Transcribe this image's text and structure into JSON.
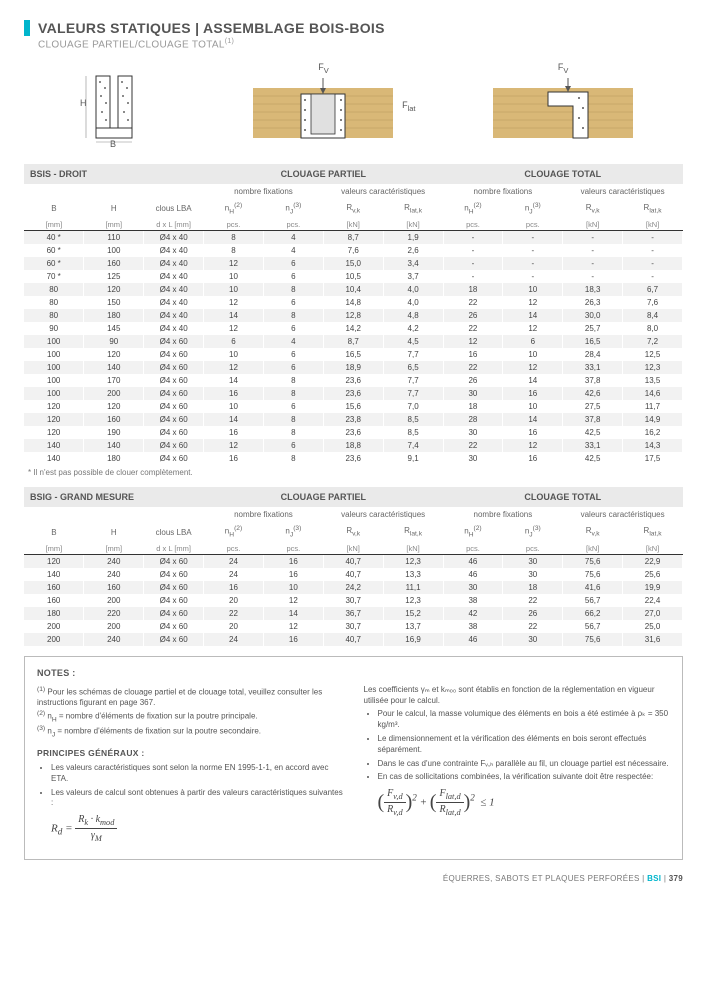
{
  "title": "VALEURS STATIQUES | ASSEMBLAGE BOIS-BOIS",
  "subtitle_prefix": "CLOUAGE PARTIEL/CLOUAGE TOTAL",
  "subtitle_sup": "(1)",
  "diagram_labels": {
    "H": "H",
    "B": "B",
    "Fv": "F",
    "Fv_sub": "V",
    "Flat": "F",
    "Flat_sub": "lat"
  },
  "accent_color": "#00b5cc",
  "group_headers": {
    "partiel": "CLOUAGE PARTIEL",
    "total": "CLOUAGE TOTAL",
    "nombre": "nombre fixations",
    "valeurs": "valeurs caractéristiques"
  },
  "col_labels": {
    "B": "B",
    "H": "H",
    "clous": "clous LBA",
    "nH": "n",
    "nH_sub": "H",
    "nH_sup": "(2)",
    "nJ": "n",
    "nJ_sub": "J",
    "nJ_sup": "(3)",
    "Rvk": "R",
    "Rvk_sub": "v,k",
    "Rlatk": "R",
    "Rlatk_sub": "lat,k"
  },
  "units": {
    "mm": "[mm]",
    "dxl": "d x L [mm]",
    "pcs": "pcs.",
    "kN": "[kN]"
  },
  "table1": {
    "title": "BSIS - DROIT",
    "rows": [
      {
        "B": "40 *",
        "H": "110",
        "cl": "Ø4 x 40",
        "p": [
          "8",
          "4",
          "8,7",
          "1,9"
        ],
        "t": [
          "-",
          "-",
          "-",
          "-"
        ]
      },
      {
        "B": "60 *",
        "H": "100",
        "cl": "Ø4 x 40",
        "p": [
          "8",
          "4",
          "7,6",
          "2,6"
        ],
        "t": [
          "-",
          "-",
          "-",
          "-"
        ]
      },
      {
        "B": "60 *",
        "H": "160",
        "cl": "Ø4 x 40",
        "p": [
          "12",
          "6",
          "15,0",
          "3,4"
        ],
        "t": [
          "-",
          "-",
          "-",
          "-"
        ]
      },
      {
        "B": "70 *",
        "H": "125",
        "cl": "Ø4 x 40",
        "p": [
          "10",
          "6",
          "10,5",
          "3,7"
        ],
        "t": [
          "-",
          "-",
          "-",
          "-"
        ]
      },
      {
        "B": "80",
        "H": "120",
        "cl": "Ø4 x 40",
        "p": [
          "10",
          "8",
          "10,4",
          "4,0"
        ],
        "t": [
          "18",
          "10",
          "18,3",
          "6,7"
        ]
      },
      {
        "B": "80",
        "H": "150",
        "cl": "Ø4 x 40",
        "p": [
          "12",
          "6",
          "14,8",
          "4,0"
        ],
        "t": [
          "22",
          "12",
          "26,3",
          "7,6"
        ]
      },
      {
        "B": "80",
        "H": "180",
        "cl": "Ø4 x 40",
        "p": [
          "14",
          "8",
          "12,8",
          "4,8"
        ],
        "t": [
          "26",
          "14",
          "30,0",
          "8,4"
        ]
      },
      {
        "B": "90",
        "H": "145",
        "cl": "Ø4 x 40",
        "p": [
          "12",
          "6",
          "14,2",
          "4,2"
        ],
        "t": [
          "22",
          "12",
          "25,7",
          "8,0"
        ]
      },
      {
        "B": "100",
        "H": "90",
        "cl": "Ø4 x 60",
        "p": [
          "6",
          "4",
          "8,7",
          "4,5"
        ],
        "t": [
          "12",
          "6",
          "16,5",
          "7,2"
        ]
      },
      {
        "B": "100",
        "H": "120",
        "cl": "Ø4 x 60",
        "p": [
          "10",
          "6",
          "16,5",
          "7,7"
        ],
        "t": [
          "16",
          "10",
          "28,4",
          "12,5"
        ]
      },
      {
        "B": "100",
        "H": "140",
        "cl": "Ø4 x 60",
        "p": [
          "12",
          "6",
          "18,9",
          "6,5"
        ],
        "t": [
          "22",
          "12",
          "33,1",
          "12,3"
        ]
      },
      {
        "B": "100",
        "H": "170",
        "cl": "Ø4 x 60",
        "p": [
          "14",
          "8",
          "23,6",
          "7,7"
        ],
        "t": [
          "26",
          "14",
          "37,8",
          "13,5"
        ]
      },
      {
        "B": "100",
        "H": "200",
        "cl": "Ø4 x 60",
        "p": [
          "16",
          "8",
          "23,6",
          "7,7"
        ],
        "t": [
          "30",
          "16",
          "42,6",
          "14,6"
        ]
      },
      {
        "B": "120",
        "H": "120",
        "cl": "Ø4 x 60",
        "p": [
          "10",
          "6",
          "15,6",
          "7,0"
        ],
        "t": [
          "18",
          "10",
          "27,5",
          "11,7"
        ]
      },
      {
        "B": "120",
        "H": "160",
        "cl": "Ø4 x 60",
        "p": [
          "14",
          "8",
          "23,8",
          "8,5"
        ],
        "t": [
          "28",
          "14",
          "37,8",
          "14,9"
        ]
      },
      {
        "B": "120",
        "H": "190",
        "cl": "Ø4 x 60",
        "p": [
          "16",
          "8",
          "23,6",
          "8,5"
        ],
        "t": [
          "30",
          "16",
          "42,5",
          "16,2"
        ]
      },
      {
        "B": "140",
        "H": "140",
        "cl": "Ø4 x 60",
        "p": [
          "12",
          "6",
          "18,8",
          "7,4"
        ],
        "t": [
          "22",
          "12",
          "33,1",
          "14,3"
        ]
      },
      {
        "B": "140",
        "H": "180",
        "cl": "Ø4 x 60",
        "p": [
          "16",
          "8",
          "23,6",
          "9,1"
        ],
        "t": [
          "30",
          "16",
          "42,5",
          "17,5"
        ]
      }
    ]
  },
  "footnote_star": "*  Il n'est pas possible de clouer complètement.",
  "table2": {
    "title": "BSIG - GRAND MESURE",
    "rows": [
      {
        "B": "120",
        "H": "240",
        "cl": "Ø4 x 60",
        "p": [
          "24",
          "16",
          "40,7",
          "12,3"
        ],
        "t": [
          "46",
          "30",
          "75,6",
          "22,9"
        ]
      },
      {
        "B": "140",
        "H": "240",
        "cl": "Ø4 x 60",
        "p": [
          "24",
          "16",
          "40,7",
          "13,3"
        ],
        "t": [
          "46",
          "30",
          "75,6",
          "25,6"
        ]
      },
      {
        "B": "160",
        "H": "160",
        "cl": "Ø4 x 60",
        "p": [
          "16",
          "10",
          "24,2",
          "11,1"
        ],
        "t": [
          "30",
          "18",
          "41,6",
          "19,9"
        ]
      },
      {
        "B": "160",
        "H": "200",
        "cl": "Ø4 x 60",
        "p": [
          "20",
          "12",
          "30,7",
          "12,3"
        ],
        "t": [
          "38",
          "22",
          "56,7",
          "22,4"
        ]
      },
      {
        "B": "180",
        "H": "220",
        "cl": "Ø4 x 60",
        "p": [
          "22",
          "14",
          "36,7",
          "15,2"
        ],
        "t": [
          "42",
          "26",
          "66,2",
          "27,0"
        ]
      },
      {
        "B": "200",
        "H": "200",
        "cl": "Ø4 x 60",
        "p": [
          "20",
          "12",
          "30,7",
          "13,7"
        ],
        "t": [
          "38",
          "22",
          "56,7",
          "25,0"
        ]
      },
      {
        "B": "200",
        "H": "240",
        "cl": "Ø4 x 60",
        "p": [
          "24",
          "16",
          "40,7",
          "16,9"
        ],
        "t": [
          "46",
          "30",
          "75,6",
          "31,6"
        ]
      }
    ]
  },
  "notes": {
    "heading": "NOTES :",
    "n1_sup": "(1)",
    "n1": "Pour les schémas de clouage partiel et de clouage total, veuillez consulter les instructions figurant en page 367.",
    "n2_sup": "(2)",
    "n2_prefix": "n",
    "n2_sub": "H",
    "n2": " = nombre d'éléments de fixation sur la poutre principale.",
    "n3_sup": "(3)",
    "n3_prefix": "n",
    "n3_sub": "J",
    "n3": " = nombre d'éléments de fixation sur la poutre secondaire.",
    "principes": "PRINCIPES GÉNÉRAUX :",
    "p_left": [
      "Les valeurs caractéristiques sont selon la norme EN 1995-1-1, en accord avec ETA.",
      "Les valeurs de calcul sont obtenues à partir des valeurs caractéristiques suivantes :"
    ],
    "formula_left": {
      "Rd": "R",
      "Rd_sub": "d",
      "Rk": "R",
      "Rk_sub": "k",
      "kmod": "k",
      "kmod_sub": "mod",
      "gammaM": "γ",
      "gammaM_sub": "M"
    },
    "p_right": [
      "Les coefficients γₘ et kₘₒ₀ sont établis en fonction de la réglementation en vigueur utilisée pour le calcul.",
      "Pour le calcul, la masse volumique des éléments en bois a été estimée à ρₖ = 350 kg/m³.",
      "Le dimensionnement et la vérification des éléments en bois seront effectués séparément.",
      "Dans le cas d'une contrainte Fᵥ,ₕ parallèle au fil, un clouage partiel est nécessaire.",
      "En cas de sollicitations combinées, la vérification suivante doit être respectée:"
    ],
    "formula_right": {
      "Fvd": "F",
      "Fvd_sub": "v,d",
      "Rvd": "R",
      "Rvd_sub": "v,d",
      "Flatd": "F",
      "Flatd_sub": "lat,d",
      "Rlatd": "R",
      "Rlatd_sub": "lat,d",
      "sq": "2",
      "le": "≤ 1"
    }
  },
  "footer": {
    "text": "ÉQUERRES, SABOTS ET PLAQUES PERFORÉES",
    "code": "BSI",
    "page": "379"
  }
}
